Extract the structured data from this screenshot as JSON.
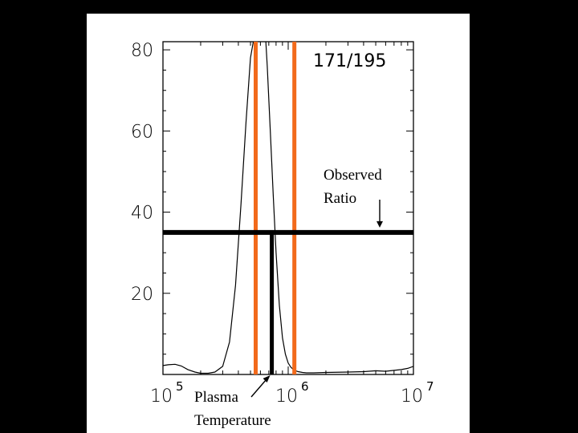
{
  "chart_data": {
    "type": "line",
    "title": "171/195",
    "xlabel": "",
    "ylabel": "",
    "x_scale": "log",
    "xlim": [
      100000,
      10000000
    ],
    "ylim": [
      0,
      82
    ],
    "y_ticks": [
      "20",
      "40",
      "60",
      "80"
    ],
    "x_ticks": [
      {
        "base": "10",
        "exp": "5"
      },
      {
        "base": "10",
        "exp": "6"
      },
      {
        "base": "10",
        "exp": "7"
      }
    ],
    "series": [
      {
        "x": [
          100000,
          110000,
          125000,
          140000,
          158000,
          180000,
          200000,
          230000,
          260000,
          300000,
          340000,
          380000,
          420000,
          460000,
          500000,
          540000,
          570000,
          600000,
          640000,
          680000,
          720000,
          760000,
          800000,
          850000,
          900000,
          950000,
          1000000,
          1050000,
          1100000,
          1150000,
          1200000,
          1300000,
          1400000,
          1600000,
          2000000,
          3000000,
          4000000,
          5000000,
          6000000,
          7000000,
          8000000,
          9000000,
          10000000
        ],
        "y": [
          2.2,
          2.4,
          2.5,
          2.1,
          1.2,
          0.6,
          0.3,
          0.3,
          0.6,
          2,
          8,
          22,
          42,
          62,
          78,
          84,
          90,
          95,
          90,
          76,
          60,
          44,
          30,
          17,
          9,
          5,
          2.8,
          1.8,
          1.2,
          0.9,
          0.7,
          0.5,
          0.4,
          0.4,
          0.5,
          0.6,
          0.7,
          0.9,
          0.8,
          1.0,
          1.2,
          1.5,
          2.0
        ]
      }
    ],
    "vertical_lines": [
      {
        "x": 550000,
        "color": "#f26a1b"
      },
      {
        "x": 1120000,
        "color": "#f26a1b"
      }
    ],
    "observed_ratio": 35,
    "plasma_temperature": 740000,
    "annotations": {
      "observed_line1": "Observed",
      "observed_line2": "Ratio",
      "plasma_line1": "Plasma",
      "plasma_line2": "Temperature"
    }
  },
  "colors": {
    "orange": "#f26a1b",
    "background": "#000000",
    "panel": "#ffffff"
  }
}
